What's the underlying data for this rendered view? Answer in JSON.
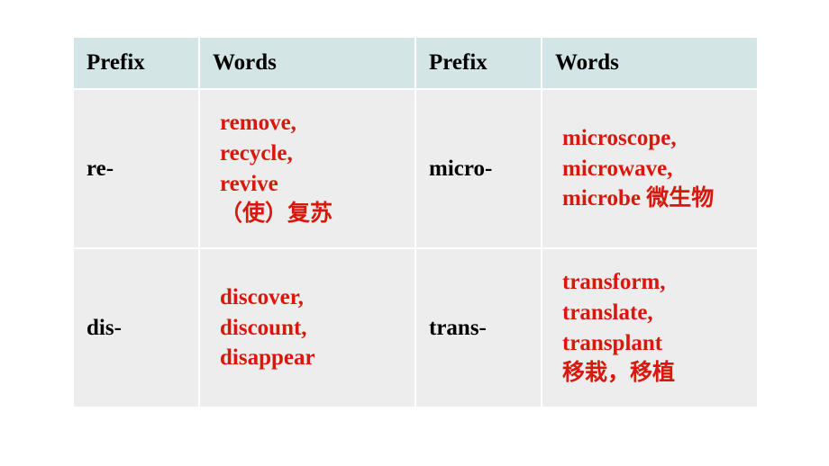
{
  "table": {
    "headers": [
      "Prefix",
      "Words",
      "Prefix",
      "Words"
    ],
    "rows": [
      {
        "prefix1": "re-",
        "words1": "remove,\nrecycle,\nrevive\n（使）复苏",
        "prefix2": "micro-",
        "words2": "microscope,\nmicrowave,\nmicrobe 微生物"
      },
      {
        "prefix1": "dis-",
        "words1": "discover,\ndiscount,\ndisappear",
        "prefix2": "trans-",
        "words2": "transform,\ntranslate,\ntransplant\n移栽，移植"
      }
    ],
    "colors": {
      "header_bg": "#d3e5e4",
      "cell_bg": "#ecedec",
      "words_color": "#d9170d",
      "prefix_color": "#000000",
      "border_color": "#ffffff"
    },
    "font_size": 25
  }
}
